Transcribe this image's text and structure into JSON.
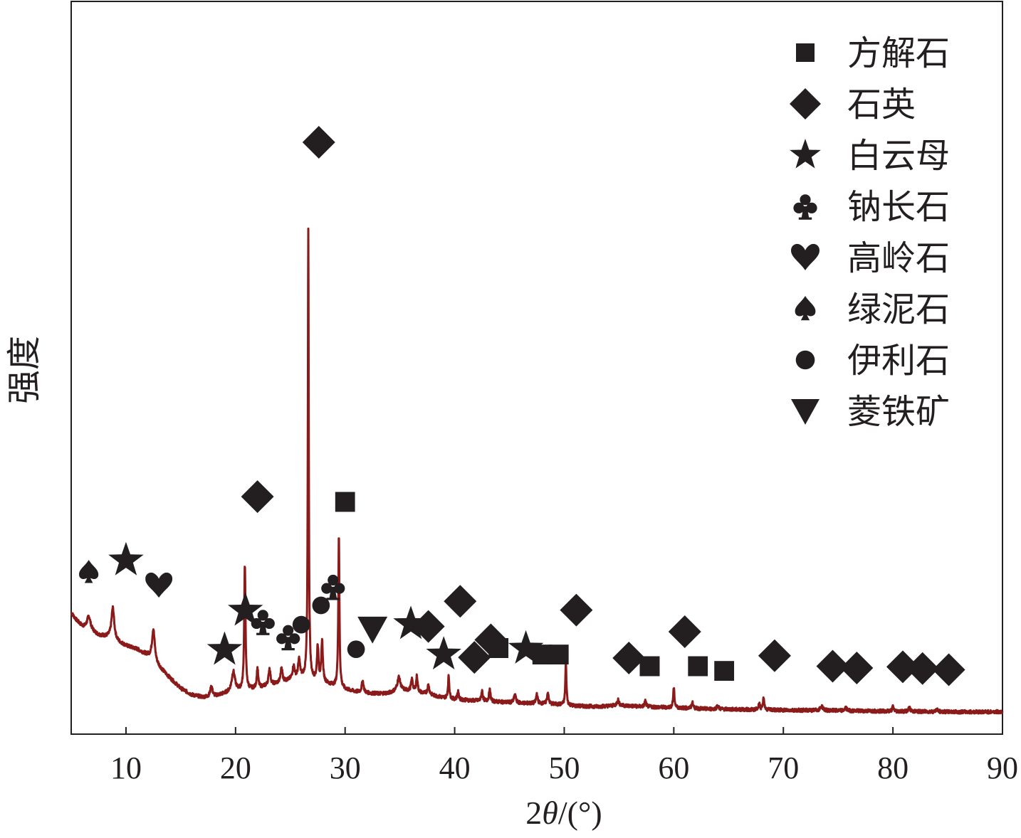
{
  "chart_data": {
    "type": "line",
    "title": "",
    "xlabel_prefix": "2",
    "xlabel_symbol": "θ",
    "xlabel_suffix": "/(°)",
    "ylabel": "强度",
    "xlim": [
      5,
      90
    ],
    "ylim": [
      0,
      1000
    ],
    "y_ticks_shown": false,
    "x_ticks": [
      10,
      20,
      30,
      40,
      50,
      60,
      70,
      80,
      90
    ],
    "x_tick_labels": [
      "10",
      "20",
      "30",
      "40",
      "50",
      "60",
      "70",
      "80",
      "90"
    ],
    "grid": false,
    "legend_position": "top-right",
    "series": [
      {
        "color": "#8b1a1a",
        "baseline": [
          [
            5,
            195
          ],
          [
            5.5,
            182
          ],
          [
            6,
            172
          ],
          [
            6.5,
            165
          ],
          [
            7,
            162
          ],
          [
            7.5,
            157
          ],
          [
            8,
            155
          ],
          [
            8.5,
            153
          ],
          [
            9.3,
            145
          ],
          [
            10,
            139
          ],
          [
            11,
            133
          ],
          [
            12,
            122
          ],
          [
            13,
            103
          ],
          [
            14,
            84
          ],
          [
            15,
            66
          ],
          [
            16,
            55
          ],
          [
            17,
            51
          ],
          [
            18,
            52
          ],
          [
            19,
            57
          ],
          [
            20,
            61
          ],
          [
            21,
            63
          ],
          [
            22,
            66
          ],
          [
            23,
            71
          ],
          [
            24,
            75
          ],
          [
            25,
            80
          ],
          [
            26,
            84
          ],
          [
            26.3,
            84
          ],
          [
            27,
            80
          ],
          [
            28,
            76
          ],
          [
            29,
            70
          ],
          [
            30,
            64
          ],
          [
            31,
            60
          ],
          [
            32,
            58
          ],
          [
            33,
            57
          ],
          [
            34,
            58
          ],
          [
            35,
            64
          ],
          [
            36,
            61
          ],
          [
            37,
            58
          ],
          [
            38,
            54
          ],
          [
            39,
            50
          ],
          [
            40,
            47
          ],
          [
            42,
            45
          ],
          [
            44,
            43
          ],
          [
            46,
            41
          ],
          [
            48,
            40
          ],
          [
            50,
            38
          ],
          [
            51,
            36
          ],
          [
            53,
            35
          ],
          [
            55,
            37
          ],
          [
            57,
            35
          ],
          [
            60,
            33
          ],
          [
            63,
            31
          ],
          [
            66,
            30
          ],
          [
            70,
            29
          ],
          [
            75,
            28
          ],
          [
            80,
            27
          ],
          [
            85,
            26
          ],
          [
            90,
            26
          ]
        ],
        "peaks": [
          [
            6.6,
            25,
            0.2
          ],
          [
            8.8,
            54,
            0.15
          ],
          [
            12.5,
            55,
            0.15
          ],
          [
            17.8,
            18,
            0.12
          ],
          [
            19.8,
            34,
            0.18
          ],
          [
            20.85,
            213,
            0.07
          ],
          [
            22.0,
            34,
            0.08
          ],
          [
            23.1,
            28,
            0.1
          ],
          [
            24.2,
            25,
            0.1
          ],
          [
            25.3,
            22,
            0.12
          ],
          [
            25.8,
            31,
            0.1
          ],
          [
            26.64,
            770,
            0.05
          ],
          [
            27.5,
            60,
            0.08
          ],
          [
            27.9,
            70,
            0.08
          ],
          [
            29.43,
            263,
            0.06
          ],
          [
            31.6,
            20,
            0.1
          ],
          [
            34.9,
            22,
            0.15
          ],
          [
            36.1,
            20,
            0.1
          ],
          [
            36.55,
            27,
            0.08
          ],
          [
            37.6,
            16,
            0.1
          ],
          [
            39.45,
            38,
            0.07
          ],
          [
            40.3,
            14,
            0.08
          ],
          [
            42.5,
            17,
            0.08
          ],
          [
            43.2,
            20,
            0.08
          ],
          [
            45.5,
            14,
            0.1
          ],
          [
            47.5,
            17,
            0.08
          ],
          [
            48.5,
            20,
            0.08
          ],
          [
            50.15,
            72,
            0.06
          ],
          [
            54.9,
            10,
            0.1
          ],
          [
            57.4,
            10,
            0.08
          ],
          [
            60.0,
            33,
            0.07
          ],
          [
            61.7,
            10,
            0.08
          ],
          [
            64.0,
            6,
            0.1
          ],
          [
            67.8,
            12,
            0.07
          ],
          [
            68.2,
            20,
            0.07
          ],
          [
            73.5,
            7,
            0.15
          ],
          [
            75.7,
            5,
            0.1
          ],
          [
            80.0,
            8,
            0.08
          ],
          [
            81.5,
            6,
            0.1
          ],
          [
            84.0,
            4,
            0.1
          ]
        ]
      }
    ],
    "legend": [
      {
        "symbol": "square",
        "label": "方解石"
      },
      {
        "symbol": "diamond",
        "label": "石英"
      },
      {
        "symbol": "star",
        "label": "白云母"
      },
      {
        "symbol": "club",
        "label": "钠长石"
      },
      {
        "symbol": "heart",
        "label": "高岭石"
      },
      {
        "symbol": "spade",
        "label": "绿泥石"
      },
      {
        "symbol": "circle",
        "label": "伊利石"
      },
      {
        "symbol": "triangle",
        "label": "菱铁矿"
      }
    ],
    "peak_markers": [
      {
        "symbol": "spade",
        "x": 6.6,
        "y": 265
      },
      {
        "symbol": "star",
        "x": 10.0,
        "y": 285
      },
      {
        "symbol": "heart",
        "x": 13.0,
        "y": 242
      },
      {
        "symbol": "star",
        "x": 19.0,
        "y": 132
      },
      {
        "symbol": "star",
        "x": 20.9,
        "y": 199
      },
      {
        "symbol": "club",
        "x": 22.5,
        "y": 180
      },
      {
        "symbol": "club",
        "x": 24.8,
        "y": 154
      },
      {
        "symbol": "circle",
        "x": 26.0,
        "y": 175
      },
      {
        "symbol": "diamond",
        "x": 22.0,
        "y": 394
      },
      {
        "symbol": "diamond",
        "x": 27.6,
        "y": 1000
      },
      {
        "symbol": "club",
        "x": 28.9,
        "y": 240
      },
      {
        "symbol": "circle",
        "x": 27.8,
        "y": 208
      },
      {
        "symbol": "square",
        "x": 30.0,
        "y": 385
      },
      {
        "symbol": "circle",
        "x": 31.0,
        "y": 133
      },
      {
        "symbol": "triangle",
        "x": 32.5,
        "y": 167
      },
      {
        "symbol": "star",
        "x": 36.0,
        "y": 176
      },
      {
        "symbol": "diamond",
        "x": 37.6,
        "y": 172
      },
      {
        "symbol": "star",
        "x": 39.0,
        "y": 124
      },
      {
        "symbol": "diamond",
        "x": 40.5,
        "y": 215
      },
      {
        "symbol": "diamond",
        "x": 41.8,
        "y": 119
      },
      {
        "symbol": "diamond",
        "x": 43.3,
        "y": 149
      },
      {
        "symbol": "square",
        "x": 44.0,
        "y": 135
      },
      {
        "symbol": "star",
        "x": 46.5,
        "y": 134
      },
      {
        "symbol": "square",
        "x": 48.0,
        "y": 124
      },
      {
        "symbol": "square",
        "x": 49.5,
        "y": 124
      },
      {
        "symbol": "diamond",
        "x": 51.1,
        "y": 200
      },
      {
        "symbol": "diamond",
        "x": 55.9,
        "y": 118
      },
      {
        "symbol": "square",
        "x": 57.8,
        "y": 104
      },
      {
        "symbol": "diamond",
        "x": 61.0,
        "y": 163
      },
      {
        "symbol": "square",
        "x": 62.2,
        "y": 104
      },
      {
        "symbol": "square",
        "x": 64.6,
        "y": 96
      },
      {
        "symbol": "diamond",
        "x": 69.2,
        "y": 122
      },
      {
        "symbol": "diamond",
        "x": 74.5,
        "y": 104
      },
      {
        "symbol": "diamond",
        "x": 76.7,
        "y": 101
      },
      {
        "symbol": "diamond",
        "x": 80.9,
        "y": 103
      },
      {
        "symbol": "diamond",
        "x": 82.7,
        "y": 100
      },
      {
        "symbol": "diamond",
        "x": 85.1,
        "y": 98
      }
    ]
  }
}
